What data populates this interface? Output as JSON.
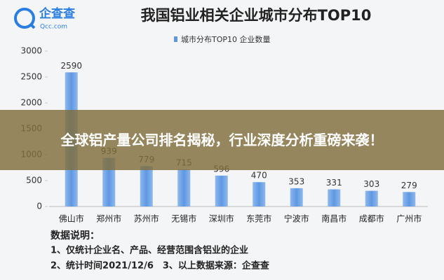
{
  "header": {
    "logo": "企查查",
    "logo_sub": "Qcc.com"
  },
  "chart_data": {
    "type": "bar",
    "title": "我国铝业相关企业城市分布TOP10",
    "series_name": "城市分布TOP10 企业数量",
    "categories": [
      "佛山市",
      "郑州市",
      "苏州市",
      "无锡市",
      "深圳市",
      "东莞市",
      "宁波市",
      "南昌市",
      "成都市",
      "广州市"
    ],
    "values": [
      2590,
      939,
      779,
      715,
      596,
      470,
      353,
      331,
      303,
      279
    ],
    "color": "#5e98e2",
    "ylim": [
      0,
      3000
    ],
    "yticks": [
      0,
      500,
      1000,
      1500,
      2000,
      2500,
      3000
    ]
  },
  "notes": {
    "heading": "数据说明：",
    "lines": [
      "1、仅统计企业名、产品、经营范围含铝业的企业",
      "2、统计时间2021/12/6　3、以上数据来源：企查查"
    ]
  },
  "banner": {
    "text": "全球铝产量公司排名揭秘，行业深度分析重磅来袭！"
  }
}
